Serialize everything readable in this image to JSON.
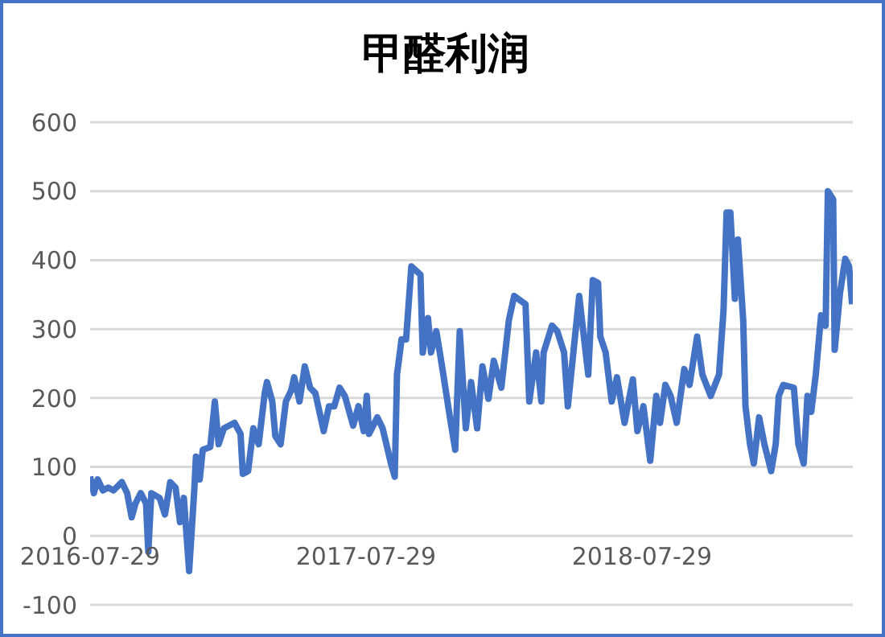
{
  "chart_data": {
    "type": "line",
    "title": "甲醛利润",
    "color": "#4472c4",
    "line_style": "solid",
    "marker": "none",
    "grid": "y",
    "x": [
      "2016-07-29",
      "2016-08-03",
      "2016-08-08",
      "2016-08-15",
      "2016-08-22",
      "2016-08-29",
      "2016-09-09",
      "2016-09-16",
      "2016-09-22",
      "2016-09-27",
      "2016-10-04",
      "2016-10-11",
      "2016-10-14",
      "2016-10-18",
      "2016-10-29",
      "2016-11-05",
      "2016-11-12",
      "2016-11-19",
      "2016-11-25",
      "2016-11-30",
      "2016-12-07",
      "2016-12-14",
      "2016-12-16",
      "2016-12-21",
      "2016-12-25",
      "2017-01-04",
      "2017-01-10",
      "2017-01-15",
      "2017-01-22",
      "2017-02-05",
      "2017-02-13",
      "2017-02-16",
      "2017-02-23",
      "2017-03-02",
      "2017-03-09",
      "2017-03-17",
      "2017-03-20",
      "2017-03-27",
      "2017-03-31",
      "2017-04-07",
      "2017-04-14",
      "2017-04-21",
      "2017-04-25",
      "2017-05-02",
      "2017-05-09",
      "2017-05-16",
      "2017-05-23",
      "2017-06-03",
      "2017-06-10",
      "2017-06-17",
      "2017-06-24",
      "2017-07-01",
      "2017-07-12",
      "2017-07-19",
      "2017-07-26",
      "2017-07-30",
      "2017-08-02",
      "2017-08-13",
      "2017-08-20",
      "2017-08-31",
      "2017-09-05",
      "2017-09-08",
      "2017-09-14",
      "2017-09-20",
      "2017-09-27",
      "2017-10-09",
      "2017-10-12",
      "2017-10-19",
      "2017-10-23",
      "2017-10-30",
      "2017-11-06",
      "2017-11-17",
      "2017-11-24",
      "2017-11-30",
      "2017-12-08",
      "2017-12-15",
      "2017-12-23",
      "2017-12-30",
      "2018-01-07",
      "2018-01-14",
      "2018-01-24",
      "2018-02-03",
      "2018-02-10",
      "2018-02-25",
      "2018-03-02",
      "2018-03-11",
      "2018-03-18",
      "2018-03-21",
      "2018-04-01",
      "2018-04-08",
      "2018-04-17",
      "2018-04-22",
      "2018-05-07",
      "2018-05-19",
      "2018-05-25",
      "2018-06-01",
      "2018-06-04",
      "2018-06-11",
      "2018-06-19",
      "2018-06-26",
      "2018-07-06",
      "2018-07-17",
      "2018-07-23",
      "2018-07-31",
      "2018-08-09",
      "2018-08-17",
      "2018-08-22",
      "2018-08-29",
      "2018-09-05",
      "2018-09-13",
      "2018-09-23",
      "2018-09-30",
      "2018-10-10",
      "2018-10-17",
      "2018-10-28",
      "2018-11-08",
      "2018-11-14",
      "2018-11-18",
      "2018-11-23",
      "2018-11-29",
      "2018-12-03",
      "2018-12-10",
      "2018-12-13",
      "2018-12-19",
      "2018-12-24",
      "2018-12-31",
      "2019-01-07",
      "2019-01-16",
      "2019-01-22",
      "2019-01-26",
      "2019-02-01",
      "2019-02-15",
      "2019-02-21",
      "2019-02-28",
      "2019-03-05",
      "2019-03-10",
      "2019-03-16",
      "2019-03-23",
      "2019-03-29",
      "2019-04-01",
      "2019-04-08",
      "2019-04-10",
      "2019-04-17",
      "2019-04-24",
      "2019-04-29",
      "2019-05-03"
    ],
    "values": [
      86,
      62,
      82,
      66,
      70,
      66,
      78,
      62,
      27,
      47,
      62,
      47,
      -23,
      62,
      55,
      31,
      78,
      70,
      20,
      55,
      -51,
      70,
      115,
      82,
      125,
      129,
      195,
      133,
      156,
      164,
      148,
      90,
      94,
      156,
      133,
      207,
      223,
      195,
      145,
      133,
      195,
      211,
      230,
      195,
      246,
      215,
      207,
      152,
      188,
      188,
      215,
      203,
      160,
      188,
      152,
      203,
      148,
      172,
      156,
      105,
      86,
      234,
      285,
      285,
      391,
      379,
      266,
      316,
      266,
      297,
      250,
      172,
      125,
      297,
      156,
      223,
      156,
      246,
      199,
      254,
      215,
      313,
      348,
      336,
      195,
      266,
      195,
      266,
      305,
      297,
      266,
      188,
      348,
      234,
      371,
      367,
      289,
      266,
      195,
      230,
      164,
      227,
      152,
      188,
      109,
      203,
      164,
      219,
      203,
      164,
      242,
      219,
      289,
      234,
      203,
      234,
      328,
      469,
      469,
      344,
      430,
      313,
      188,
      133,
      105,
      172,
      133,
      94,
      133,
      203,
      219,
      215,
      133,
      105,
      203,
      180,
      234,
      320,
      305,
      500,
      488,
      270,
      352,
      402,
      391,
      336
    ],
    "xlim": [
      "2016-07-29",
      "2019-05-04"
    ],
    "xticks": [
      "2016-07-29",
      "2017-07-29",
      "2018-07-29"
    ],
    "ylim": [
      -100,
      600
    ],
    "yticks": [
      -100,
      0,
      100,
      200,
      300,
      400,
      500,
      600
    ]
  }
}
